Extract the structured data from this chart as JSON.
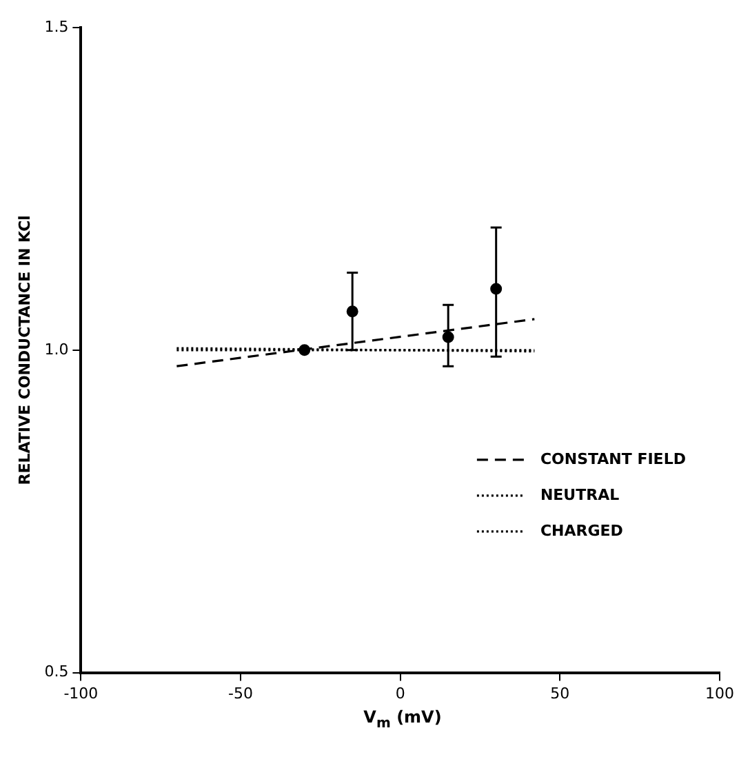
{
  "chart_data": {
    "type": "scatter",
    "xlabel": "V$_{m}$ (mV)",
    "ylabel": "RELATIVE CONDUCTANCE IN KCl",
    "xlim": [
      -100,
      100
    ],
    "xticks": [
      -100,
      -50,
      0,
      50,
      100
    ],
    "ylim": [
      0.5,
      1.5
    ],
    "yticks": [
      {
        "value": 0.5,
        "label": "0.5"
      },
      {
        "value": 1.0,
        "label": "1.0"
      },
      {
        "value": 1.5,
        "label": "1.5"
      }
    ],
    "grid": false,
    "legend": "bottom right",
    "marker": "circle",
    "series": [
      {
        "color": "#000000",
        "x": [
          -30,
          -15,
          15,
          30
        ],
        "values": [
          1.0,
          1.06,
          1.02,
          1.095
        ],
        "errors": [
          null,
          [
            1.0,
            1.12
          ],
          [
            0.975,
            1.07
          ],
          [
            0.99,
            1.19
          ]
        ]
      },
      {
        "type": "line",
        "name": "CONSTANT FIELD",
        "color": "#000000",
        "line_style": "dashed",
        "marker": "none",
        "x": [
          -70,
          42
        ],
        "values": [
          0.975,
          1.048
        ]
      },
      {
        "type": "line",
        "name": "NEUTRAL",
        "color": "#000000",
        "line_style": "dotted",
        "marker": "none",
        "x": [
          -70,
          42
        ],
        "values": [
          1.0,
          1.0
        ]
      },
      {
        "type": "line",
        "name": "CHARGED",
        "color": "#000000",
        "line_style": "dotted",
        "marker": "none",
        "x": [
          -70,
          42
        ],
        "values": [
          1.003,
          0.998
        ]
      }
    ]
  }
}
